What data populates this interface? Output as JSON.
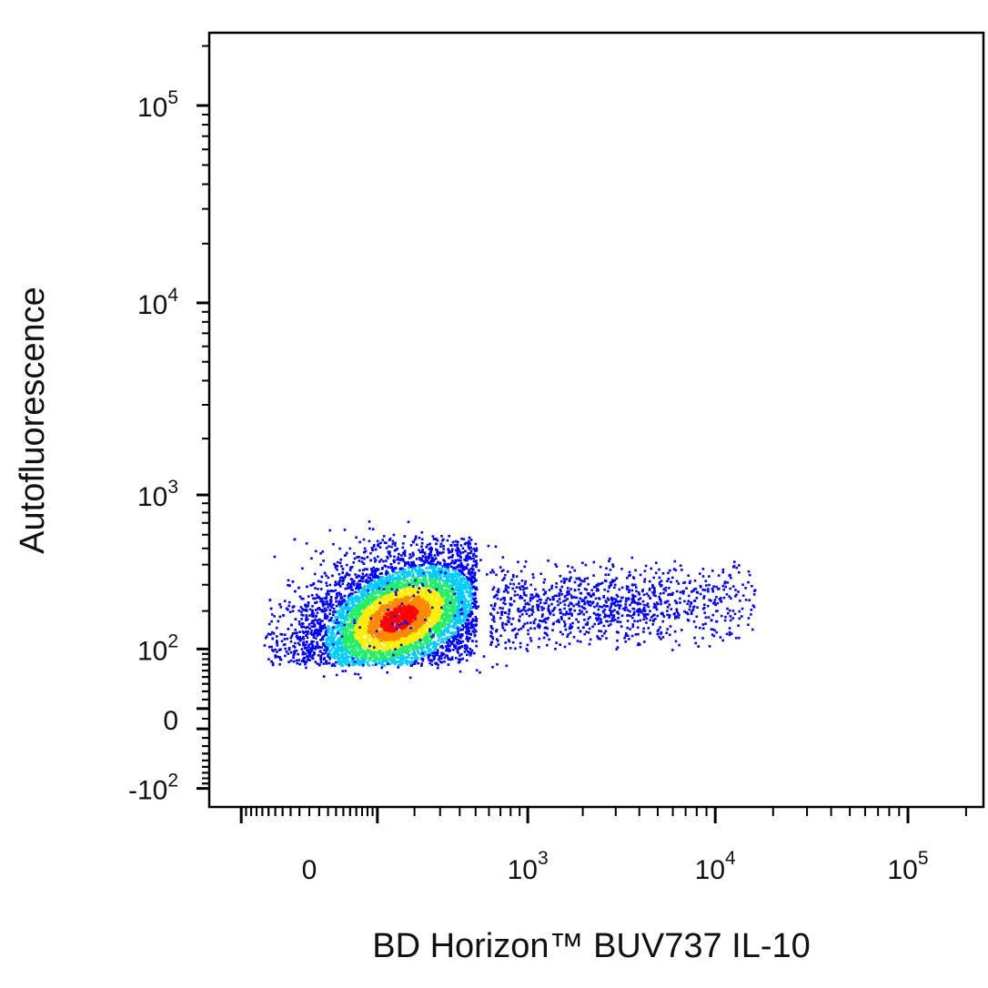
{
  "chart_data": {
    "type": "scatter",
    "subtype": "flow-cytometry density dot plot",
    "title": "",
    "xlabel": "BD Horizon™ BUV737 IL-10",
    "ylabel": "Autofluorescence",
    "x_scale": "biexponential",
    "y_scale": "biexponential",
    "grid": false,
    "x_ticks": [
      {
        "value": 0,
        "base": "0",
        "exp": ""
      },
      {
        "value": 1000,
        "base": "10",
        "exp": "3"
      },
      {
        "value": 10000,
        "base": "10",
        "exp": "4"
      },
      {
        "value": 100000,
        "base": "10",
        "exp": "5"
      }
    ],
    "y_ticks": [
      {
        "value": -100,
        "base": "-10",
        "exp": "2"
      },
      {
        "value": 0,
        "base": "0",
        "exp": ""
      },
      {
        "value": 100,
        "base": "10",
        "exp": "2"
      },
      {
        "value": 1000,
        "base": "10",
        "exp": "3"
      },
      {
        "value": 10000,
        "base": "10",
        "exp": "4"
      },
      {
        "value": 100000,
        "base": "10",
        "exp": "5"
      }
    ],
    "populations": [
      {
        "name": "main cluster",
        "x_center": 150,
        "y_center": 180,
        "x_range": [
          -60,
          500
        ],
        "y_range": [
          70,
          600
        ],
        "peak_density": "high"
      },
      {
        "name": "IL-10 tail",
        "x_center": 2500,
        "y_center": 220,
        "x_range": [
          600,
          16000
        ],
        "y_range": [
          100,
          450
        ],
        "peak_density": "low"
      }
    ],
    "density_colors": [
      "#0000ff",
      "#00ccff",
      "#22ee66",
      "#ffee00",
      "#ff8800",
      "#ff0000"
    ],
    "series_count": 1
  }
}
